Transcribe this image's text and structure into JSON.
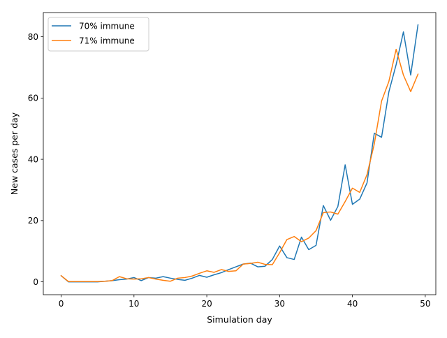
{
  "chart_data": {
    "type": "line",
    "title": "",
    "xlabel": "Simulation day",
    "ylabel": "New cases per day",
    "xlim": [
      -2.45,
      51.45
    ],
    "ylim": [
      -4.2,
      87.9
    ],
    "xticks": [
      0,
      10,
      20,
      30,
      40,
      50
    ],
    "yticks": [
      0,
      20,
      40,
      60,
      80
    ],
    "grid": false,
    "legend": "top-left",
    "x": [
      0,
      1,
      2,
      3,
      4,
      5,
      6,
      7,
      8,
      9,
      10,
      11,
      12,
      13,
      14,
      15,
      16,
      17,
      18,
      19,
      20,
      21,
      22,
      23,
      24,
      25,
      26,
      27,
      28,
      29,
      30,
      31,
      32,
      33,
      34,
      35,
      36,
      37,
      38,
      39,
      40,
      41,
      42,
      43,
      44,
      45,
      46,
      47,
      48,
      49
    ],
    "series": [
      {
        "name": "70% immune",
        "color": "#1f77b4",
        "values": [
          2.0,
          0.0,
          0.0,
          0.0,
          0.0,
          0.0,
          0.2,
          0.4,
          0.7,
          0.9,
          1.4,
          0.4,
          1.4,
          1.2,
          1.7,
          1.2,
          0.8,
          0.5,
          1.2,
          2.1,
          1.5,
          2.3,
          3.0,
          4.0,
          4.9,
          5.8,
          6.1,
          4.9,
          5.1,
          7.3,
          11.7,
          7.9,
          7.3,
          14.6,
          10.5,
          11.9,
          24.9,
          20.1,
          24.6,
          38.2,
          25.3,
          27.0,
          32.3,
          48.5,
          47.2,
          62.0,
          70.9,
          81.6,
          67.5,
          83.9
        ]
      },
      {
        "name": "71% immune",
        "color": "#ff7f0e",
        "values": [
          2.0,
          0.1,
          0.1,
          0.1,
          0.1,
          0.1,
          0.2,
          0.4,
          1.7,
          1.0,
          0.9,
          1.0,
          1.4,
          0.9,
          0.5,
          0.2,
          1.2,
          1.4,
          1.9,
          2.8,
          3.6,
          3.1,
          4.0,
          3.4,
          3.6,
          5.8,
          6.0,
          6.4,
          5.7,
          5.6,
          9.5,
          13.8,
          14.8,
          13.1,
          14.3,
          16.7,
          22.6,
          22.8,
          22.1,
          26.2,
          30.6,
          29.2,
          35.0,
          45.0,
          59.0,
          65.4,
          75.9,
          67.5,
          62.1,
          67.8
        ]
      }
    ]
  }
}
